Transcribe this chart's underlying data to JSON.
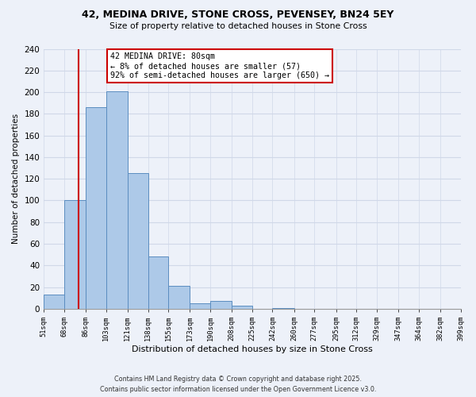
{
  "title": "42, MEDINA DRIVE, STONE CROSS, PEVENSEY, BN24 5EY",
  "subtitle": "Size of property relative to detached houses in Stone Cross",
  "xlabel": "Distribution of detached houses by size in Stone Cross",
  "ylabel": "Number of detached properties",
  "bar_values": [
    13,
    100,
    186,
    201,
    125,
    48,
    21,
    5,
    7,
    3,
    0,
    1,
    0,
    0,
    0,
    0,
    0,
    0,
    0,
    0
  ],
  "bin_labels": [
    "51sqm",
    "68sqm",
    "86sqm",
    "103sqm",
    "121sqm",
    "138sqm",
    "155sqm",
    "173sqm",
    "190sqm",
    "208sqm",
    "225sqm",
    "242sqm",
    "260sqm",
    "277sqm",
    "295sqm",
    "312sqm",
    "329sqm",
    "347sqm",
    "364sqm",
    "382sqm",
    "399sqm"
  ],
  "bar_color": "#adc9e8",
  "bar_edge_color": "#5b8dc0",
  "highlight_line_color": "#cc0000",
  "annotation_line1": "42 MEDINA DRIVE: 80sqm",
  "annotation_line2": "← 8% of detached houses are smaller (57)",
  "annotation_line3": "92% of semi-detached houses are larger (650) →",
  "annotation_box_color": "#ffffff",
  "annotation_box_edge": "#cc0000",
  "ylim": [
    0,
    240
  ],
  "yticks": [
    0,
    20,
    40,
    60,
    80,
    100,
    120,
    140,
    160,
    180,
    200,
    220,
    240
  ],
  "background_color": "#edf1f9",
  "grid_color": "#d0d8e8",
  "footer_line1": "Contains HM Land Registry data © Crown copyright and database right 2025.",
  "footer_line2": "Contains public sector information licensed under the Open Government Licence v3.0.",
  "bin_edges": [
    51,
    68,
    86,
    103,
    121,
    138,
    155,
    173,
    190,
    208,
    225,
    242,
    260,
    277,
    295,
    312,
    329,
    347,
    364,
    382,
    399
  ]
}
